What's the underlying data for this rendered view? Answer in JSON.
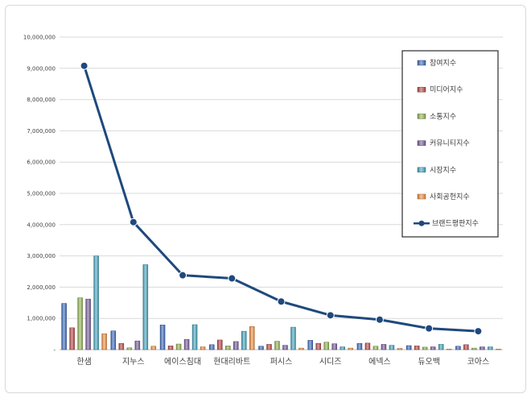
{
  "chart_data": {
    "type": "bar",
    "categories": [
      "한샘",
      "지누스",
      "에이스침대",
      "현대리바트",
      "퍼시스",
      "시디즈",
      "에넥스",
      "듀오백",
      "코아스"
    ],
    "ylim": [
      0,
      10000000
    ],
    "yticks": [
      "-",
      "1,000,000",
      "2,000,000",
      "3,000,000",
      "4,000,000",
      "5,000,000",
      "6,000,000",
      "7,000,000",
      "8,000,000",
      "9,000,000",
      "10,000,000"
    ],
    "ytick_values": [
      0,
      1000000,
      2000000,
      3000000,
      4000000,
      5000000,
      6000000,
      7000000,
      8000000,
      9000000,
      10000000
    ],
    "series": [
      {
        "name": "참여지수",
        "color": "#4472C4",
        "values": [
          1480000,
          600000,
          790000,
          160000,
          110000,
          300000,
          200000,
          130000,
          110000
        ]
      },
      {
        "name": "미디어지수",
        "color": "#C0504D",
        "values": [
          700000,
          200000,
          120000,
          310000,
          170000,
          200000,
          210000,
          120000,
          160000
        ]
      },
      {
        "name": "소통지수",
        "color": "#9BBB59",
        "values": [
          1660000,
          60000,
          180000,
          120000,
          270000,
          240000,
          110000,
          80000,
          50000
        ]
      },
      {
        "name": "커뮤니티지수",
        "color": "#8064A2",
        "values": [
          1620000,
          280000,
          330000,
          260000,
          140000,
          190000,
          170000,
          90000,
          90000
        ]
      },
      {
        "name": "시장지수",
        "color": "#4BACC6",
        "values": [
          3000000,
          2720000,
          800000,
          590000,
          720000,
          90000,
          140000,
          170000,
          90000
        ]
      },
      {
        "name": "사회공헌지수",
        "color": "#F79646",
        "values": [
          510000,
          110000,
          90000,
          740000,
          50000,
          50000,
          40000,
          20000,
          20000
        ]
      }
    ],
    "line_series": {
      "name": "브랜드평판지수",
      "color": "#1F497D",
      "values": [
        9080000,
        4080000,
        2380000,
        2280000,
        1540000,
        1100000,
        960000,
        680000,
        590000
      ]
    },
    "legend_position": "right"
  }
}
